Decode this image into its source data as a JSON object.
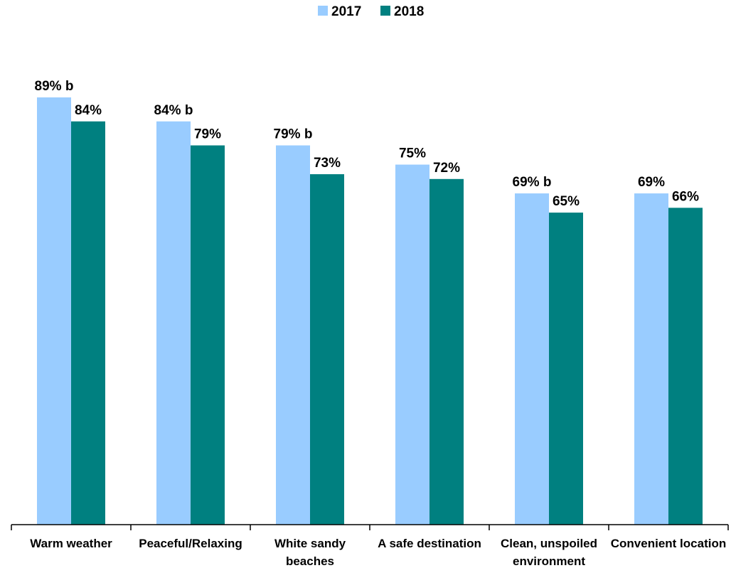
{
  "chart_data": {
    "type": "bar",
    "categories": [
      "Warm weather",
      "Peaceful/Relaxing",
      "White sandy beaches",
      "A safe destination",
      "Clean, unspoiled environment",
      "Convenient location"
    ],
    "series": [
      {
        "name": "2017",
        "color": "#99ccff",
        "values": [
          89,
          84,
          79,
          75,
          69,
          69
        ],
        "value_labels": [
          "89% b",
          "84% b",
          "79% b",
          "75%",
          "69% b",
          "69%"
        ]
      },
      {
        "name": "2018",
        "color": "#008080",
        "values": [
          84,
          79,
          73,
          72,
          65,
          66
        ],
        "value_labels": [
          "84%",
          "79%",
          "73%",
          "72%",
          "65%",
          "66%"
        ]
      }
    ],
    "legend": "top"
  }
}
